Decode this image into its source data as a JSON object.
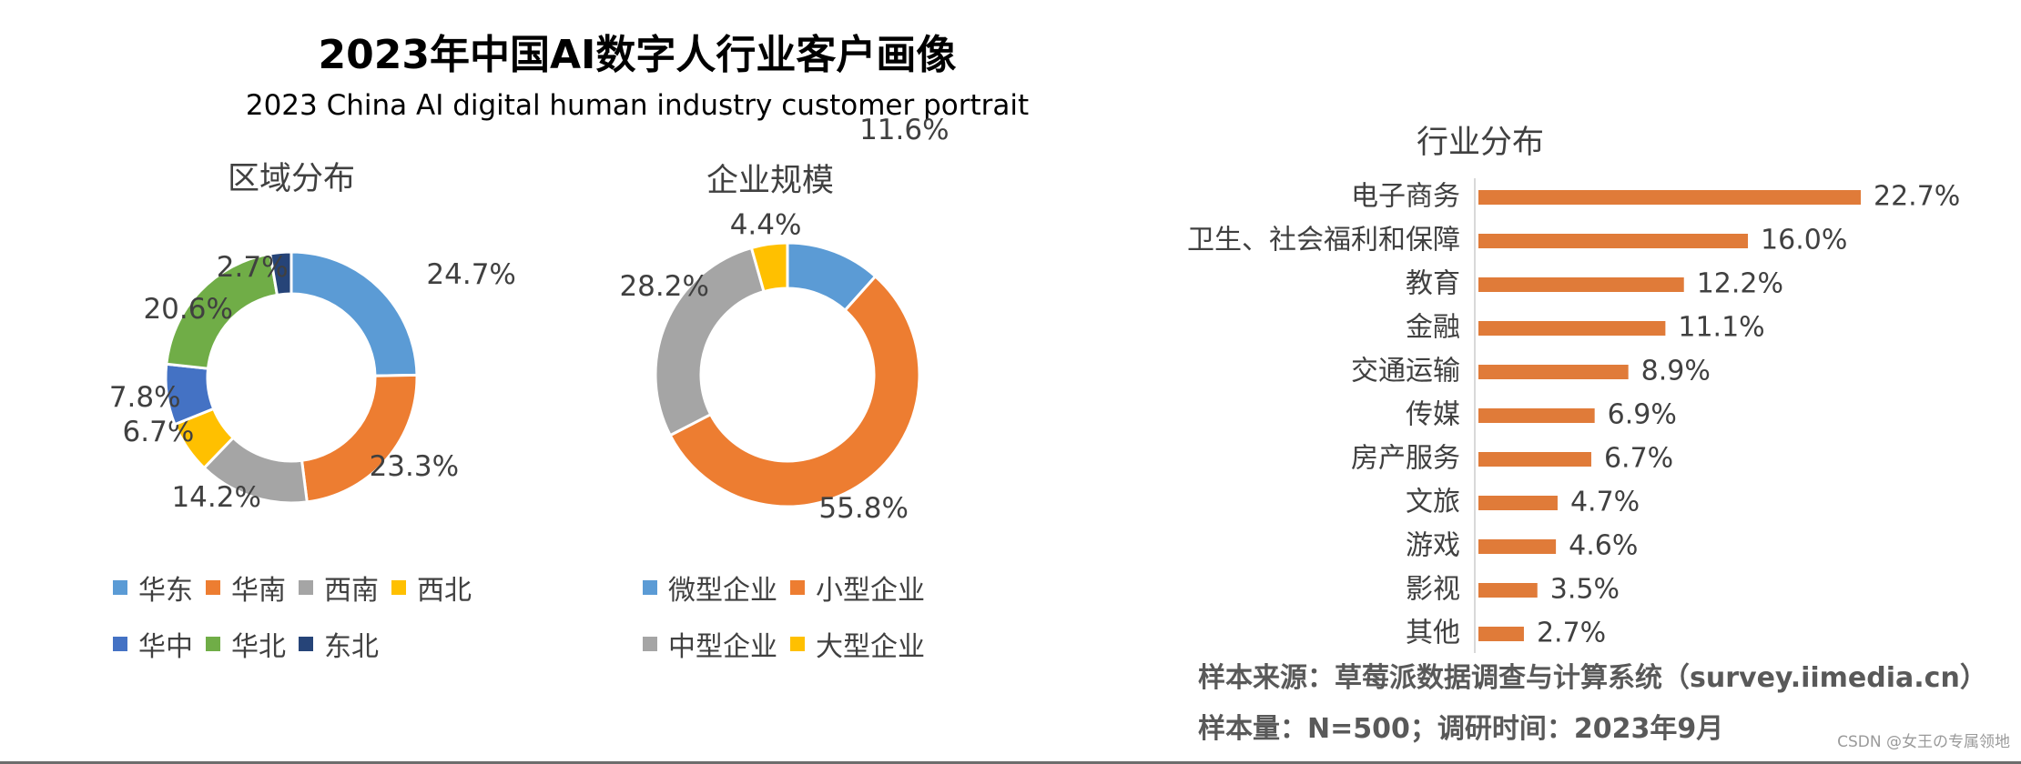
{
  "header": {
    "title": "2023年中国AI数字人行业客户画像",
    "subtitle": "2023 China AI digital human industry customer portrait"
  },
  "chart_data": [
    {
      "type": "donut",
      "title": "区域分布",
      "categories": [
        "华东",
        "华南",
        "西南",
        "西北",
        "华中",
        "华北",
        "东北"
      ],
      "values": [
        24.7,
        23.3,
        14.2,
        6.7,
        7.8,
        20.6,
        2.7
      ],
      "labels": [
        "24.7%",
        "23.3%",
        "14.2%",
        "6.7%",
        "7.8%",
        "20.6%",
        "2.7%"
      ],
      "colors": [
        "#5b9bd5",
        "#ed7d31",
        "#a5a5a5",
        "#ffc000",
        "#4472c4",
        "#70ad47",
        "#264478"
      ],
      "legend_rows": [
        [
          "华东",
          "华南",
          "西南",
          "西北"
        ],
        [
          "华中",
          "华北",
          "东北"
        ]
      ]
    },
    {
      "type": "donut",
      "title": "企业规模",
      "categories": [
        "微型企业",
        "小型企业",
        "中型企业",
        "大型企业"
      ],
      "values": [
        11.6,
        55.8,
        28.2,
        4.4
      ],
      "labels": [
        "11.6%",
        "55.8%",
        "28.2%",
        "4.4%"
      ],
      "colors": [
        "#5b9bd5",
        "#ed7d31",
        "#a5a5a5",
        "#ffc000"
      ],
      "legend_rows": [
        [
          "微型企业",
          "小型企业"
        ],
        [
          "中型企业",
          "大型企业"
        ]
      ]
    },
    {
      "type": "bar",
      "orientation": "horizontal",
      "title": "行业分布",
      "categories": [
        "电子商务",
        "卫生、社会福利和保障",
        "教育",
        "金融",
        "交通运输",
        "传媒",
        "房产服务",
        "文旅",
        "游戏",
        "影视",
        "其他"
      ],
      "values": [
        22.7,
        16.0,
        12.2,
        11.1,
        8.9,
        6.9,
        6.7,
        4.7,
        4.6,
        3.5,
        2.7
      ],
      "labels": [
        "22.7%",
        "16.0%",
        "12.2%",
        "11.1%",
        "8.9%",
        "6.9%",
        "6.7%",
        "4.7%",
        "4.6%",
        "3.5%",
        "2.7%"
      ],
      "color": "#e07b39",
      "xlim": [
        0,
        25
      ]
    }
  ],
  "footer": {
    "source": "样本来源：草莓派数据调查与计算系统（survey.iimedia.cn）",
    "sample": "样本量：N=500；调研时间：2023年9月",
    "watermark": "CSDN @女王の专属领地"
  }
}
